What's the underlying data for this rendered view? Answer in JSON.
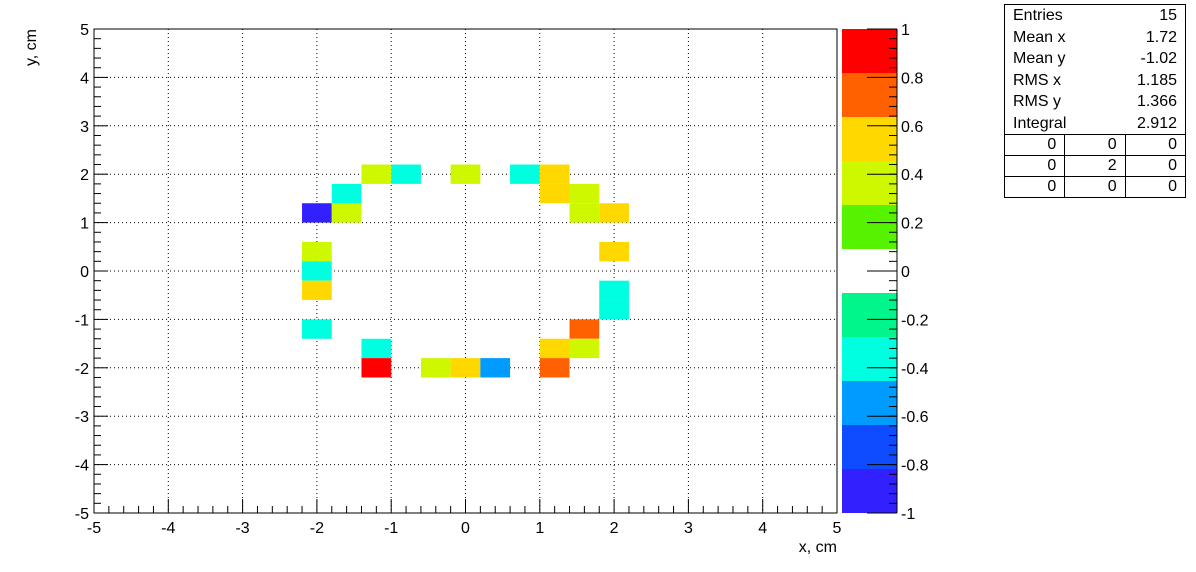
{
  "chart_data": {
    "type": "heatmap",
    "xlabel": "x, cm",
    "ylabel": "y, cm",
    "xlim": [
      -5,
      5
    ],
    "ylim": [
      -5,
      5
    ],
    "bin_size": 0.4,
    "grid": true,
    "x_ticks": [
      "-5",
      "-4",
      "-3",
      "-2",
      "-1",
      "0",
      "1",
      "2",
      "3",
      "4",
      "5"
    ],
    "y_ticks": [
      "-5",
      "-4",
      "-3",
      "-2",
      "-1",
      "0",
      "1",
      "2",
      "3",
      "4",
      "5"
    ],
    "colorbar": {
      "range": [
        -1,
        1
      ],
      "ticks": [
        "-1",
        "-0.8",
        "-0.6",
        "-0.4",
        "-0.2",
        "0",
        "0.2",
        "0.4",
        "0.6",
        "0.8",
        "1"
      ],
      "colors": [
        "#3320ff",
        "#0f4cff",
        "#009bff",
        "#00ffe0",
        "#00f68a",
        "#ffffff",
        "#55f300",
        "#cdf800",
        "#ffd800",
        "#ff6000",
        "#ff0000"
      ]
    },
    "cells": [
      {
        "x": -2.0,
        "y": 1.2,
        "value": -0.9
      },
      {
        "x": -1.6,
        "y": 1.2,
        "value": 0.3
      },
      {
        "x": -1.6,
        "y": 1.6,
        "value": -0.3
      },
      {
        "x": -1.2,
        "y": 2.0,
        "value": 0.3
      },
      {
        "x": -0.8,
        "y": 2.0,
        "value": -0.3
      },
      {
        "x": 0.0,
        "y": 2.0,
        "value": 0.3
      },
      {
        "x": 0.8,
        "y": 2.0,
        "value": -0.3
      },
      {
        "x": 1.2,
        "y": 2.0,
        "value": 0.5
      },
      {
        "x": 1.2,
        "y": 1.6,
        "value": 0.5
      },
      {
        "x": 1.6,
        "y": 1.6,
        "value": 0.3
      },
      {
        "x": 1.6,
        "y": 1.2,
        "value": 0.3
      },
      {
        "x": 2.0,
        "y": 1.2,
        "value": 0.5
      },
      {
        "x": 2.0,
        "y": 0.4,
        "value": 0.5
      },
      {
        "x": -2.0,
        "y": 0.4,
        "value": 0.3
      },
      {
        "x": -2.0,
        "y": 0.0,
        "value": -0.3
      },
      {
        "x": -2.0,
        "y": -0.4,
        "value": 0.5
      },
      {
        "x": 2.0,
        "y": -0.4,
        "value": -0.3
      },
      {
        "x": 2.0,
        "y": -0.8,
        "value": -0.3
      },
      {
        "x": -2.0,
        "y": -1.2,
        "value": -0.3
      },
      {
        "x": 1.6,
        "y": -1.2,
        "value": 0.7
      },
      {
        "x": -1.2,
        "y": -1.6,
        "value": -0.3
      },
      {
        "x": 1.2,
        "y": -1.6,
        "value": 0.5
      },
      {
        "x": 1.6,
        "y": -1.6,
        "value": 0.3
      },
      {
        "x": -1.2,
        "y": -2.0,
        "value": 0.9
      },
      {
        "x": -0.4,
        "y": -2.0,
        "value": 0.3
      },
      {
        "x": 0.0,
        "y": -2.0,
        "value": 0.5
      },
      {
        "x": 0.4,
        "y": -2.0,
        "value": -0.5
      },
      {
        "x": 1.2,
        "y": -2.0,
        "value": 0.7
      }
    ]
  },
  "stats": {
    "entries_label": "Entries",
    "entries_value": "15",
    "meanx_label": "Mean x",
    "meanx_value": "1.72",
    "meany_label": "Mean y",
    "meany_value": "-1.02",
    "rmsx_label": "RMS x",
    "rmsx_value": "1.185",
    "rmsy_label": "RMS y",
    "rmsy_value": "1.366",
    "integral_label": "Integral",
    "integral_value": "2.912",
    "grid": [
      [
        "0",
        "0",
        "0"
      ],
      [
        "0",
        "2",
        "0"
      ],
      [
        "0",
        "0",
        "0"
      ]
    ]
  }
}
